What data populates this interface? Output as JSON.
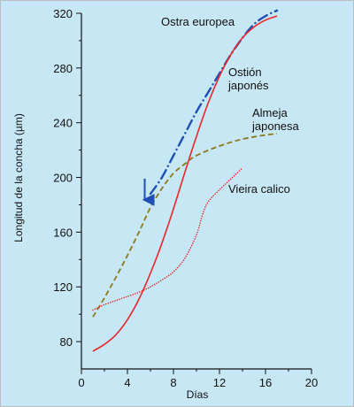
{
  "chart_data": {
    "type": "line",
    "xlabel": "Días",
    "ylabel": "Longitud de la concha (µm)",
    "xlim": [
      0,
      20
    ],
    "ylim": [
      60,
      320
    ],
    "x_ticks": [
      0,
      4,
      8,
      12,
      16,
      20
    ],
    "y_ticks": [
      80,
      120,
      160,
      200,
      240,
      280,
      320
    ],
    "background_color": "#c6e7f6",
    "series": [
      {
        "name": "Ostra europea",
        "style": "dash-dot",
        "color": "#1f4fb5",
        "x": [
          6,
          7,
          8,
          9,
          10,
          11,
          12,
          13,
          14,
          15,
          16,
          17
        ],
        "y": [
          188,
          200,
          216,
          232,
          248,
          262,
          276,
          290,
          302,
          312,
          318,
          322
        ]
      },
      {
        "name": "Ostión japonés",
        "style": "solid",
        "color": "#e8282b",
        "x": [
          1,
          2,
          3,
          4,
          5,
          6,
          7,
          8,
          9,
          10,
          11,
          12,
          13,
          14,
          15,
          16,
          17
        ],
        "y": [
          73,
          78,
          85,
          96,
          111,
          130,
          152,
          177,
          204,
          230,
          254,
          274,
          290,
          302,
          310,
          315,
          318
        ]
      },
      {
        "name": "Almeja japonesa",
        "style": "dashed",
        "color": "#8c7a21",
        "x": [
          1,
          2,
          3,
          4,
          5,
          6,
          7,
          8,
          9,
          10,
          12,
          14,
          16,
          17
        ],
        "y": [
          98,
          112,
          127,
          143,
          160,
          178,
          192,
          203,
          210,
          216,
          223,
          228,
          231,
          232
        ]
      },
      {
        "name": "Vieira calico",
        "style": "dotted",
        "color": "#e8282b",
        "x": [
          1,
          2,
          3,
          4,
          5,
          6,
          7,
          8,
          9,
          10,
          10.5,
          11,
          12,
          13,
          14
        ],
        "y": [
          103,
          107,
          110,
          113,
          116,
          120,
          125,
          131,
          141,
          158,
          172,
          182,
          191,
          199,
          207
        ]
      }
    ],
    "annotations": [
      {
        "type": "arrow",
        "x": 5.5,
        "y": 181,
        "color": "#1f4fb5"
      }
    ]
  }
}
